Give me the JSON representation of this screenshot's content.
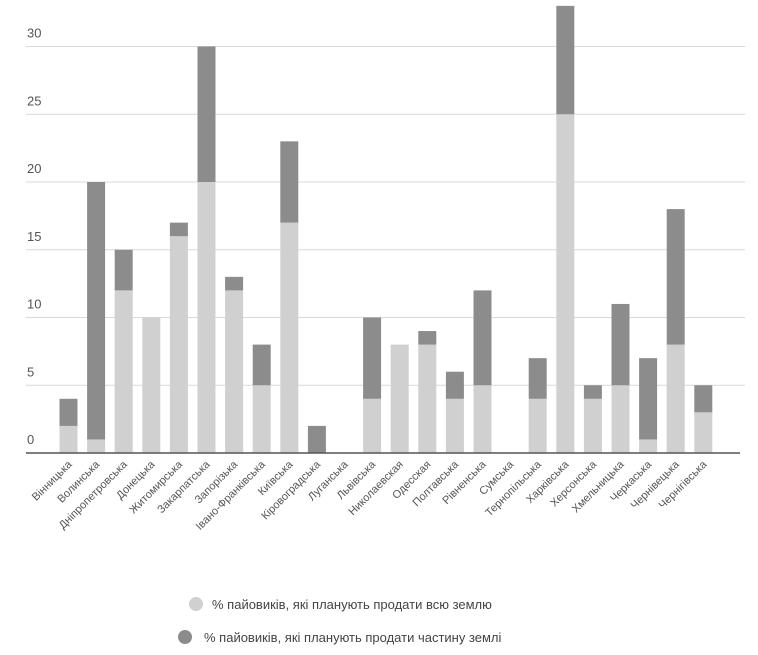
{
  "chart_data": {
    "type": "bar",
    "stacked": true,
    "title": "",
    "xlabel": "",
    "ylabel": "",
    "ylim": [
      0,
      33
    ],
    "yticks": [
      "0",
      "5",
      "10",
      "15",
      "20",
      "25",
      "30"
    ],
    "grid": true,
    "legend_position": "bottom",
    "categories": [
      "Вінницька",
      "Волинська",
      "Дніпропетровська",
      "Донецька",
      "Житомирська",
      "Закарпатська",
      "Запорізька",
      "Івано-Франківська",
      "Київська",
      "Кіровоградська",
      "Луганська",
      "Львівська",
      "Николаевская",
      "Одесская",
      "Полтавська",
      "Рівненська",
      "Сумська",
      "Тернопільська",
      "Харківська",
      "Херсонська",
      "Хмельницька",
      "Черкаська",
      "Чернівецька",
      "Чернігівська"
    ],
    "series": [
      {
        "name": "% пайовиків, які планують продати всю землю",
        "color": "#d0d0d0",
        "values": [
          2,
          1,
          12,
          10,
          16,
          20,
          12,
          5,
          17,
          0,
          0,
          4,
          8,
          8,
          4,
          5,
          0,
          4,
          25,
          4,
          5,
          1,
          8,
          3
        ]
      },
      {
        "name": "% пайовиків, які планують продати частину землі",
        "color": "#8c8c8c",
        "values": [
          2,
          19,
          3,
          0,
          1,
          10,
          1,
          3,
          6,
          2,
          0,
          6,
          0,
          1,
          2,
          7,
          0,
          3,
          8,
          1,
          6,
          6,
          10,
          2
        ]
      }
    ]
  },
  "colors": {
    "grid": "#d9d9d9",
    "axis": "#555555"
  }
}
